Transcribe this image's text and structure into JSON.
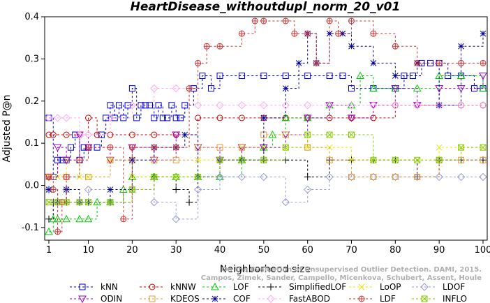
{
  "chart_data": {
    "type": "line",
    "title": "HeartDisease_withoutdupl_norm_20_v01",
    "xlabel": "Neighborhood size",
    "ylabel": "Adjusted P@n",
    "xlim": [
      0,
      100
    ],
    "ylim": [
      -0.13,
      0.4
    ],
    "xticks": [
      1,
      10,
      20,
      30,
      40,
      50,
      60,
      70,
      80,
      90,
      100
    ],
    "yticks": [
      -0.1,
      0.0,
      0.1,
      0.2,
      0.3,
      0.4
    ],
    "ytick_labels": [
      "-0.1",
      "0.0",
      "0.1",
      "0.2",
      "0.3",
      "0.4"
    ],
    "grid": false,
    "legend_position": "bottom",
    "watermark": [
      "Campos, Zimek, Sander, Campello, Micenkova, Schubert, Assent, Houle",
      "On the Evaluation of Unsupervised Outlier Detection. DAMI, 2015."
    ],
    "series": [
      {
        "name": "kNN",
        "color": "#0000cc",
        "marker": "square",
        "x": [
          1,
          2,
          3,
          4,
          5,
          6,
          7,
          8,
          9,
          10,
          12,
          13,
          14,
          15,
          16,
          17,
          18,
          19,
          20,
          21,
          22,
          23,
          24,
          25,
          26,
          27,
          28,
          29,
          30,
          31,
          32,
          34,
          36,
          38,
          40,
          45,
          50,
          55,
          60,
          65,
          68,
          70,
          75,
          80,
          82,
          84,
          86,
          88,
          90,
          92,
          95,
          98,
          100
        ],
        "y": [
          0.16,
          0.02,
          0.06,
          0.06,
          0.06,
          0.09,
          0.12,
          0.06,
          0.09,
          0.09,
          0.09,
          0.12,
          0.16,
          0.19,
          0.16,
          0.19,
          0.16,
          0.19,
          0.23,
          0.16,
          0.19,
          0.19,
          0.19,
          0.16,
          0.19,
          0.16,
          0.16,
          0.19,
          0.16,
          0.16,
          0.19,
          0.23,
          0.26,
          0.23,
          0.26,
          0.26,
          0.26,
          0.26,
          0.26,
          0.26,
          0.26,
          0.23,
          0.23,
          0.23,
          0.26,
          0.26,
          0.29,
          0.29,
          0.29,
          0.26,
          0.26,
          0.23,
          0.23
        ]
      },
      {
        "name": "kNNW",
        "color": "#cc0000",
        "marker": "circle",
        "x": [
          1,
          2,
          5,
          8,
          10,
          12,
          15,
          20,
          25,
          30,
          35,
          40,
          45,
          50,
          55,
          60,
          65,
          70,
          75,
          80,
          85,
          90,
          95,
          100
        ],
        "y": [
          0.12,
          0.12,
          0.12,
          0.12,
          0.16,
          0.12,
          0.12,
          0.12,
          0.12,
          0.12,
          0.16,
          0.16,
          0.16,
          0.16,
          0.16,
          0.16,
          0.16,
          0.16,
          0.16,
          0.19,
          0.19,
          0.19,
          0.19,
          0.19
        ]
      },
      {
        "name": "LOF",
        "color": "#00cc00",
        "marker": "triangle-up",
        "x": [
          1,
          2,
          3,
          5,
          8,
          10,
          12,
          15,
          18,
          20,
          25,
          30,
          35,
          40,
          45,
          50,
          52,
          55,
          60,
          65,
          70,
          72,
          75,
          80,
          85,
          90,
          95,
          100
        ],
        "y": [
          -0.11,
          -0.08,
          -0.08,
          -0.08,
          -0.08,
          -0.08,
          -0.04,
          -0.04,
          -0.01,
          0.02,
          0.02,
          0.02,
          0.02,
          0.02,
          0.06,
          0.09,
          0.12,
          0.16,
          0.16,
          0.19,
          0.19,
          0.26,
          0.23,
          0.23,
          0.23,
          0.26,
          0.26,
          0.23
        ]
      },
      {
        "name": "SimplifiedLOF",
        "color": "#000000",
        "marker": "plus",
        "x": [
          1,
          2,
          5,
          8,
          10,
          15,
          20,
          25,
          30,
          33,
          35,
          40,
          45,
          50,
          55,
          60,
          65,
          70,
          75,
          80,
          85,
          90,
          95,
          100
        ],
        "y": [
          -0.08,
          -0.04,
          -0.04,
          -0.04,
          -0.04,
          -0.04,
          -0.01,
          0.02,
          -0.01,
          -0.04,
          0.02,
          0.06,
          0.06,
          0.06,
          0.06,
          0.02,
          0.06,
          0.06,
          0.06,
          0.06,
          0.02,
          0.06,
          0.06,
          0.06
        ]
      },
      {
        "name": "LoOP",
        "color": "#e6e600",
        "marker": "x",
        "x": [
          1,
          3,
          5,
          8,
          10,
          15,
          20,
          25,
          30,
          35,
          40,
          45,
          50,
          55,
          60,
          65,
          70,
          75,
          80,
          85,
          90,
          95,
          100
        ],
        "y": [
          0.02,
          0.02,
          0.06,
          0.02,
          0.02,
          0.06,
          0.02,
          0.02,
          0.02,
          0.06,
          0.06,
          0.09,
          0.09,
          0.09,
          0.09,
          0.09,
          0.06,
          0.06,
          0.06,
          0.06,
          0.09,
          0.09,
          0.09
        ]
      },
      {
        "name": "LDOF",
        "color": "#9999dd",
        "marker": "diamond",
        "x": [
          1,
          3,
          5,
          8,
          10,
          15,
          20,
          25,
          30,
          35,
          40,
          45,
          50,
          55,
          60,
          65,
          70,
          75,
          80,
          85,
          90,
          95,
          100
        ],
        "y": [
          -0.01,
          -0.04,
          -0.01,
          -0.04,
          -0.01,
          -0.04,
          -0.01,
          -0.04,
          -0.08,
          -0.01,
          0.02,
          0.02,
          0.02,
          -0.04,
          -0.01,
          0.02,
          0.02,
          0.02,
          0.02,
          0.02,
          0.02,
          0.02,
          0.02
        ]
      },
      {
        "name": "ODIN",
        "color": "#9900cc",
        "marker": "triangle-down",
        "x": [
          1,
          3,
          5,
          8,
          10,
          15,
          20,
          25,
          30,
          35,
          40,
          45,
          50,
          55,
          60,
          65,
          70,
          75,
          80,
          85,
          90,
          95,
          100
        ],
        "y": [
          0.02,
          0.09,
          0.06,
          0.12,
          0.09,
          0.06,
          0.09,
          0.06,
          0.12,
          0.09,
          0.06,
          0.09,
          0.09,
          0.12,
          0.16,
          0.19,
          0.16,
          0.19,
          0.23,
          0.19,
          0.23,
          0.23,
          0.26
        ]
      },
      {
        "name": "KDEOS",
        "color": "#e69933",
        "marker": "square",
        "x": [
          1,
          5,
          10,
          15,
          20,
          25,
          30,
          35,
          40,
          45,
          50,
          55,
          60,
          65,
          70,
          75,
          80,
          85,
          90,
          95,
          100
        ],
        "y": [
          0.02,
          0.02,
          0.02,
          0.06,
          0.06,
          0.06,
          0.06,
          0.09,
          0.09,
          0.09,
          0.12,
          0.12,
          0.09,
          0.06,
          0.02,
          0.02,
          0.02,
          0.02,
          0.06,
          0.06,
          0.06
        ]
      },
      {
        "name": "COF",
        "color": "#000099",
        "marker": "star",
        "x": [
          1,
          3,
          5,
          8,
          10,
          15,
          20,
          25,
          30,
          32,
          35,
          40,
          45,
          50,
          55,
          58,
          60,
          62,
          65,
          68,
          70,
          75,
          80,
          85,
          90,
          95,
          100
        ],
        "y": [
          -0.01,
          -0.04,
          -0.01,
          -0.04,
          -0.04,
          -0.01,
          0.06,
          0.09,
          0.09,
          0.12,
          0.02,
          0.06,
          0.06,
          0.16,
          0.23,
          0.29,
          0.36,
          0.29,
          0.36,
          0.36,
          0.33,
          0.29,
          0.26,
          0.29,
          0.19,
          0.33,
          0.36
        ]
      },
      {
        "name": "FastABOD",
        "color": "#ffaaee",
        "marker": "diamond",
        "x": [
          1,
          3,
          5,
          8,
          10,
          15,
          20,
          25,
          30,
          35,
          40,
          45,
          50,
          55,
          60,
          65,
          70,
          75,
          80,
          85,
          90,
          95,
          100
        ],
        "y": [
          0.16,
          0.16,
          0.16,
          0.12,
          0.12,
          0.16,
          0.19,
          0.23,
          0.23,
          0.19,
          0.19,
          0.19,
          0.19,
          0.19,
          0.19,
          0.19,
          0.19,
          0.19,
          0.19,
          0.19,
          0.19,
          0.19,
          0.19
        ]
      },
      {
        "name": "LDF",
        "color": "#cc3333",
        "marker": "circle-plus",
        "x": [
          1,
          2,
          3,
          4,
          5,
          8,
          10,
          15,
          18,
          20,
          25,
          30,
          33,
          35,
          37,
          40,
          45,
          48,
          50,
          55,
          57,
          60,
          62,
          65,
          67,
          70,
          75,
          80,
          85,
          90,
          95,
          100
        ],
        "y": [
          0.02,
          -0.01,
          -0.11,
          -0.04,
          0.02,
          0.06,
          0.09,
          0.09,
          -0.08,
          0.09,
          0.09,
          0.09,
          0.23,
          0.29,
          0.33,
          0.33,
          0.36,
          0.39,
          0.39,
          0.39,
          0.36,
          0.36,
          0.29,
          0.39,
          0.36,
          0.39,
          0.36,
          0.33,
          0.29,
          0.29,
          0.29,
          0.29
        ]
      },
      {
        "name": "INFLO",
        "color": "#88cc00",
        "marker": "star-x",
        "x": [
          1,
          3,
          5,
          8,
          10,
          15,
          20,
          25,
          30,
          35,
          40,
          45,
          50,
          55,
          60,
          65,
          70,
          75,
          80,
          85,
          90,
          95,
          100
        ],
        "y": [
          -0.04,
          -0.04,
          -0.04,
          -0.04,
          -0.04,
          -0.04,
          -0.01,
          0.02,
          0.02,
          0.02,
          0.06,
          0.06,
          0.06,
          0.09,
          0.12,
          0.12,
          0.12,
          0.06,
          0.06,
          0.06,
          0.06,
          0.09,
          0.09
        ]
      }
    ]
  }
}
